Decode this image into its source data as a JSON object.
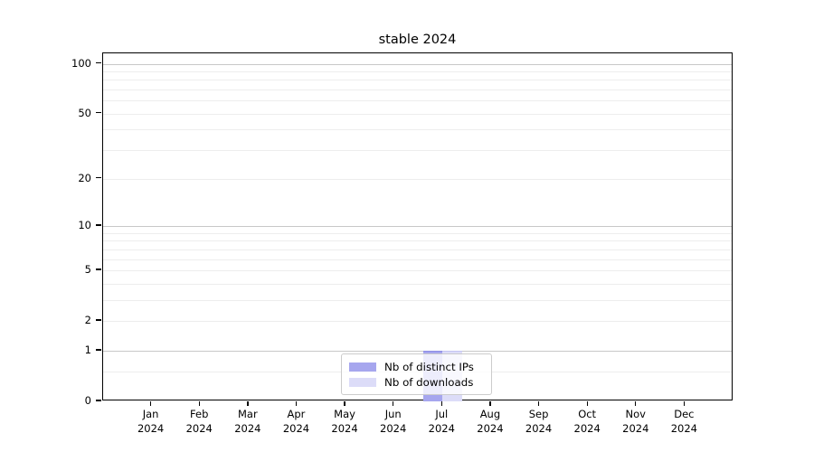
{
  "chart_data": {
    "type": "bar",
    "title": "stable 2024",
    "categories": [
      "Jan 2024",
      "Feb 2024",
      "Mar 2024",
      "Apr 2024",
      "May 2024",
      "Jun 2024",
      "Jul 2024",
      "Aug 2024",
      "Sep 2024",
      "Oct 2024",
      "Nov 2024",
      "Dec 2024"
    ],
    "series": [
      {
        "name": "Nb of distinct IPs",
        "color": "#a6a6ee",
        "edge_color": "#8d8de4",
        "values": [
          0,
          0,
          0,
          0,
          0,
          0,
          1,
          0,
          0,
          0,
          0,
          0
        ]
      },
      {
        "name": "Nb of downloads",
        "color": "#dcdcf8",
        "edge_color": "#c4c4f2",
        "values": [
          0,
          0,
          0,
          0,
          0,
          0,
          1,
          0,
          0,
          0,
          0,
          0
        ]
      }
    ],
    "xlabel": "",
    "ylabel": "",
    "y_scale": "log10(value+1)",
    "y_ticks": [
      0,
      1,
      2,
      5,
      10,
      20,
      50,
      100
    ],
    "y_major_gridlines": [
      1,
      10,
      100
    ],
    "y_minor_gridlines": [
      0.5,
      2,
      3,
      4,
      5,
      6,
      7,
      8,
      9,
      20,
      30,
      40,
      50,
      60,
      70,
      80,
      90
    ],
    "ylim": [
      0,
      112
    ],
    "grid": "horizontal major+minor",
    "legend_position": "lower center"
  },
  "colors": {
    "background": "#ffffff",
    "axis": "#000000",
    "major_grid": "#c8c8c8",
    "minor_grid": "#ededed",
    "legend_border": "#cccccc",
    "text": "#000000"
  }
}
